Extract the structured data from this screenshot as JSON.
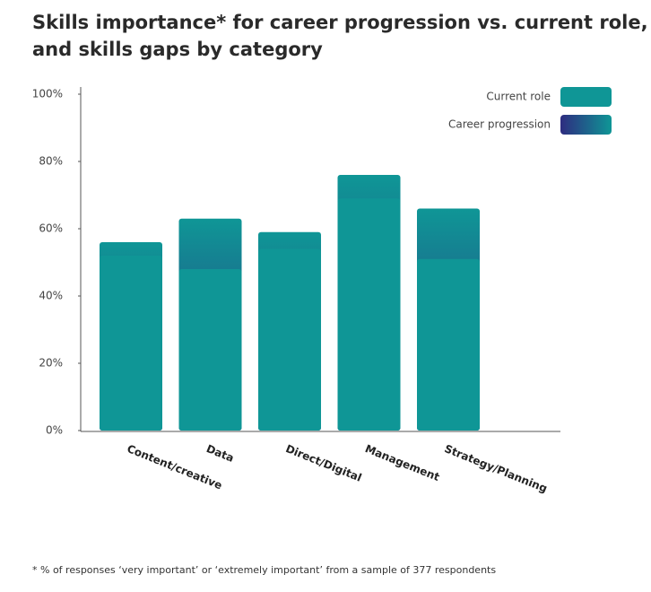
{
  "chart_data": {
    "type": "bar",
    "title": [
      "Skills importance* for career progression vs. current role,",
      "and skills gaps by category"
    ],
    "footnote": "* % of responses ‘very important’ or ‘extremely important’ from a sample of  377 respondents",
    "categories": [
      "Content/creative",
      "Data",
      "Direct/Digital",
      "Management",
      "Strategy/Planning"
    ],
    "series": [
      {
        "name": "Current role",
        "color": "#0f9696",
        "values": [
          52,
          48,
          54,
          69,
          51
        ]
      },
      {
        "name": "Career progression",
        "color": "#2e2c80",
        "values": [
          56,
          63,
          59,
          76,
          66
        ]
      }
    ],
    "ylim": [
      0,
      100
    ],
    "yticks": [
      {
        "value": 0,
        "label": "0%"
      },
      {
        "value": 20,
        "label": "20%"
      },
      {
        "value": 40,
        "label": "40%"
      },
      {
        "value": 60,
        "label": "60%"
      },
      {
        "value": 80,
        "label": "80%"
      },
      {
        "value": 100,
        "label": "100%"
      }
    ],
    "legend": "top-right"
  }
}
